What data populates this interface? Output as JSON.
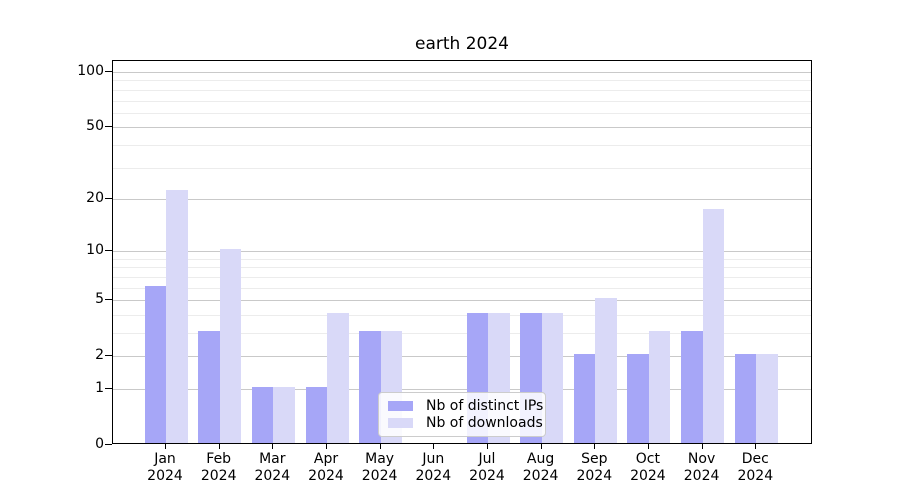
{
  "chart_data": {
    "type": "bar",
    "title": "earth 2024",
    "categories": [
      {
        "month": "Jan",
        "year": "2024"
      },
      {
        "month": "Feb",
        "year": "2024"
      },
      {
        "month": "Mar",
        "year": "2024"
      },
      {
        "month": "Apr",
        "year": "2024"
      },
      {
        "month": "May",
        "year": "2024"
      },
      {
        "month": "Jun",
        "year": "2024"
      },
      {
        "month": "Jul",
        "year": "2024"
      },
      {
        "month": "Aug",
        "year": "2024"
      },
      {
        "month": "Sep",
        "year": "2024"
      },
      {
        "month": "Oct",
        "year": "2024"
      },
      {
        "month": "Nov",
        "year": "2024"
      },
      {
        "month": "Dec",
        "year": "2024"
      }
    ],
    "series": [
      {
        "name": "Nb of distinct IPs",
        "key": "distinct-ips",
        "color": "#a6a6f7",
        "values": [
          6,
          3,
          1,
          1,
          3,
          0,
          4,
          4,
          2,
          2,
          3,
          2
        ]
      },
      {
        "name": "Nb of downloads",
        "key": "downloads",
        "color": "#d9d9f8",
        "values": [
          22,
          10,
          1,
          4,
          3,
          0,
          4,
          4,
          5,
          3,
          17,
          2
        ]
      }
    ],
    "y_axis": {
      "scale": "log1p",
      "tick_labels": [
        "0",
        "1",
        "2",
        "5",
        "10",
        "20",
        "50",
        "100"
      ],
      "ticks": [
        0,
        1,
        2,
        5,
        10,
        20,
        50,
        100
      ],
      "minor_gridlines": [
        3,
        4,
        6,
        7,
        8,
        9,
        30,
        40,
        60,
        70,
        80,
        90
      ],
      "range_max": 115
    },
    "legend_position": "lower center",
    "grid": true,
    "colors": {
      "major_grid": "#c9c9c9",
      "minor_grid": "#ececec",
      "axis": "#000000",
      "background": "#ffffff"
    }
  }
}
